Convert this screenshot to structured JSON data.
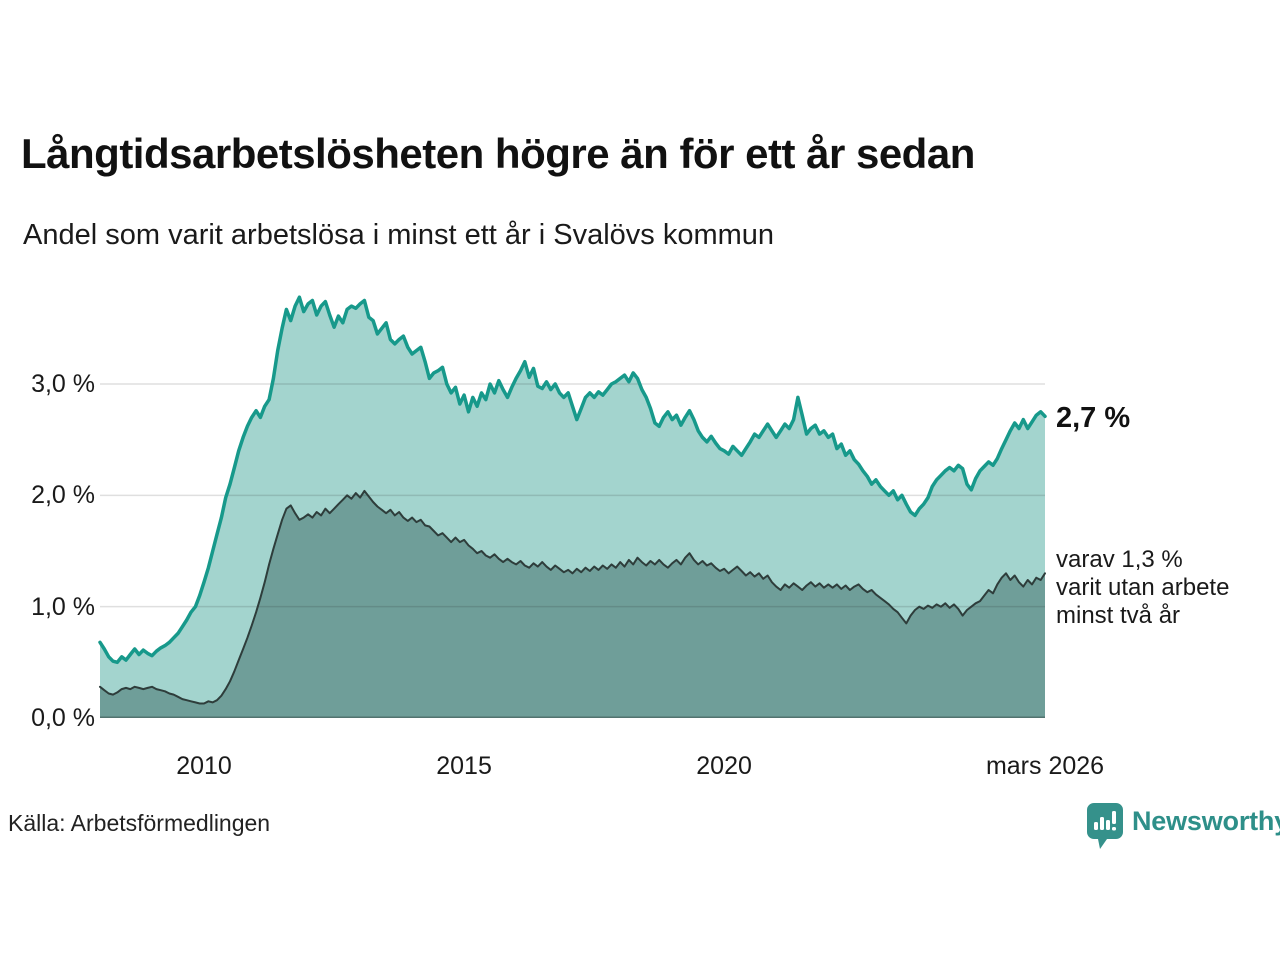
{
  "header": {
    "title": "Långtidsarbetslösheten högre än för ett år sedan",
    "subtitle": "Andel som varit arbetslösa i minst ett år i Svalövs kommun"
  },
  "annotations": {
    "end_value_main": "2,7 %",
    "end_note_lines": [
      "varav 1,3 %",
      "varit utan arbete",
      "minst två år"
    ]
  },
  "source": {
    "label": "Källa: Arbetsförmedlingen"
  },
  "logo": {
    "name": "Newsworthy",
    "color": "#2e8f89"
  },
  "chart_data": {
    "type": "area",
    "title": "Långtidsarbetslösheten högre än för ett år sedan",
    "subtitle": "Andel som varit arbetslösa i minst ett år i Svalövs kommun",
    "unit": "%",
    "grid": true,
    "x_start_year": 2008.0,
    "x_end_year": 2026.17,
    "ylim": [
      0,
      3.85
    ],
    "yticks": [
      {
        "value": 3.0,
        "label": "3,0 %"
      },
      {
        "value": 2.0,
        "label": "2,0 %"
      },
      {
        "value": 1.0,
        "label": "1,0 %"
      },
      {
        "value": 0.0,
        "label": "0,0 %"
      }
    ],
    "xticks": [
      {
        "value": 2010,
        "label": "2010"
      },
      {
        "value": 2015,
        "label": "2015"
      },
      {
        "value": 2020,
        "label": "2020"
      },
      {
        "value": 2026.17,
        "label": "mars 2026"
      }
    ],
    "colors": {
      "line_1yr": "#17998b",
      "fill_1yr": "#a3d4ce",
      "line_2yr": "#2e3d3b",
      "fill_2yr": "#6f9e99",
      "grid": "#d9d9d9",
      "brand_teal": "#2e8f89"
    },
    "series": [
      {
        "name": "Andel arbetslösa minst ett år",
        "end_value": 2.7,
        "end_label": "2,7 %",
        "color": "#17998b",
        "fill": "#a3d4ce",
        "line_width": 3.5,
        "values": [
          0.68,
          0.62,
          0.55,
          0.51,
          0.5,
          0.55,
          0.52,
          0.57,
          0.62,
          0.57,
          0.61,
          0.58,
          0.56,
          0.6,
          0.63,
          0.65,
          0.68,
          0.72,
          0.76,
          0.82,
          0.88,
          0.95,
          1.0,
          1.1,
          1.22,
          1.35,
          1.5,
          1.65,
          1.8,
          1.98,
          2.1,
          2.25,
          2.4,
          2.52,
          2.62,
          2.7,
          2.76,
          2.7,
          2.8,
          2.86,
          3.05,
          3.3,
          3.5,
          3.67,
          3.57,
          3.7,
          3.78,
          3.65,
          3.72,
          3.75,
          3.62,
          3.7,
          3.74,
          3.62,
          3.51,
          3.61,
          3.55,
          3.67,
          3.7,
          3.68,
          3.72,
          3.75,
          3.6,
          3.57,
          3.45,
          3.5,
          3.55,
          3.4,
          3.36,
          3.4,
          3.43,
          3.33,
          3.27,
          3.3,
          3.33,
          3.2,
          3.05,
          3.1,
          3.12,
          3.15,
          3.0,
          2.92,
          2.97,
          2.82,
          2.9,
          2.75,
          2.88,
          2.8,
          2.92,
          2.86,
          3.0,
          2.92,
          3.03,
          2.95,
          2.88,
          2.97,
          3.05,
          3.12,
          3.2,
          3.06,
          3.14,
          2.98,
          2.96,
          3.02,
          2.95,
          3.0,
          2.92,
          2.88,
          2.92,
          2.8,
          2.68,
          2.78,
          2.88,
          2.92,
          2.88,
          2.93,
          2.9,
          2.95,
          3.0,
          3.02,
          3.05,
          3.08,
          3.02,
          3.1,
          3.05,
          2.95,
          2.88,
          2.78,
          2.65,
          2.62,
          2.7,
          2.75,
          2.68,
          2.72,
          2.63,
          2.7,
          2.76,
          2.68,
          2.58,
          2.52,
          2.48,
          2.53,
          2.47,
          2.42,
          2.4,
          2.37,
          2.44,
          2.4,
          2.36,
          2.42,
          2.48,
          2.55,
          2.52,
          2.58,
          2.64,
          2.58,
          2.52,
          2.58,
          2.64,
          2.6,
          2.68,
          2.88,
          2.72,
          2.55,
          2.6,
          2.63,
          2.55,
          2.58,
          2.52,
          2.55,
          2.42,
          2.46,
          2.36,
          2.4,
          2.32,
          2.28,
          2.22,
          2.17,
          2.1,
          2.14,
          2.08,
          2.04,
          2.0,
          2.04,
          1.96,
          2.0,
          1.92,
          1.85,
          1.82,
          1.88,
          1.92,
          1.98,
          2.08,
          2.14,
          2.18,
          2.22,
          2.25,
          2.22,
          2.27,
          2.24,
          2.1,
          2.05,
          2.15,
          2.22,
          2.26,
          2.3,
          2.27,
          2.33,
          2.42,
          2.5,
          2.58,
          2.65,
          2.6,
          2.68,
          2.6,
          2.66,
          2.72,
          2.75,
          2.71
        ]
      },
      {
        "name": "varav arbetslösa minst två år",
        "end_value": 1.3,
        "end_label": "varav 1,3 % varit utan arbete minst två år",
        "color": "#2e3d3b",
        "fill": "#6f9e99",
        "line_width": 2,
        "values": [
          0.28,
          0.25,
          0.22,
          0.21,
          0.23,
          0.26,
          0.27,
          0.26,
          0.28,
          0.27,
          0.26,
          0.27,
          0.28,
          0.26,
          0.25,
          0.24,
          0.22,
          0.21,
          0.19,
          0.17,
          0.16,
          0.15,
          0.14,
          0.13,
          0.13,
          0.15,
          0.14,
          0.16,
          0.2,
          0.26,
          0.33,
          0.42,
          0.52,
          0.62,
          0.72,
          0.83,
          0.95,
          1.08,
          1.22,
          1.38,
          1.52,
          1.65,
          1.78,
          1.88,
          1.91,
          1.84,
          1.78,
          1.8,
          1.83,
          1.8,
          1.85,
          1.82,
          1.88,
          1.84,
          1.88,
          1.92,
          1.96,
          2.0,
          1.97,
          2.02,
          1.98,
          2.04,
          1.99,
          1.94,
          1.9,
          1.87,
          1.84,
          1.87,
          1.82,
          1.85,
          1.8,
          1.77,
          1.8,
          1.76,
          1.78,
          1.73,
          1.72,
          1.68,
          1.64,
          1.66,
          1.62,
          1.58,
          1.62,
          1.58,
          1.6,
          1.55,
          1.52,
          1.48,
          1.5,
          1.46,
          1.44,
          1.47,
          1.43,
          1.4,
          1.43,
          1.4,
          1.38,
          1.41,
          1.37,
          1.35,
          1.39,
          1.36,
          1.4,
          1.36,
          1.33,
          1.37,
          1.34,
          1.31,
          1.33,
          1.3,
          1.34,
          1.31,
          1.35,
          1.32,
          1.36,
          1.33,
          1.37,
          1.34,
          1.38,
          1.35,
          1.4,
          1.36,
          1.42,
          1.38,
          1.44,
          1.4,
          1.37,
          1.41,
          1.38,
          1.42,
          1.38,
          1.35,
          1.39,
          1.42,
          1.38,
          1.44,
          1.48,
          1.42,
          1.38,
          1.41,
          1.37,
          1.39,
          1.35,
          1.32,
          1.34,
          1.3,
          1.33,
          1.36,
          1.32,
          1.28,
          1.31,
          1.27,
          1.3,
          1.25,
          1.28,
          1.22,
          1.18,
          1.15,
          1.2,
          1.17,
          1.21,
          1.18,
          1.15,
          1.19,
          1.22,
          1.18,
          1.21,
          1.17,
          1.2,
          1.17,
          1.2,
          1.16,
          1.19,
          1.15,
          1.18,
          1.2,
          1.16,
          1.13,
          1.15,
          1.11,
          1.08,
          1.05,
          1.02,
          0.98,
          0.95,
          0.9,
          0.85,
          0.92,
          0.97,
          1.0,
          0.98,
          1.01,
          0.99,
          1.02,
          1.0,
          1.03,
          0.99,
          1.02,
          0.98,
          0.92,
          0.97,
          1.0,
          1.03,
          1.05,
          1.1,
          1.15,
          1.12,
          1.2,
          1.26,
          1.3,
          1.24,
          1.28,
          1.22,
          1.18,
          1.24,
          1.2,
          1.26,
          1.24,
          1.3
        ]
      }
    ]
  }
}
